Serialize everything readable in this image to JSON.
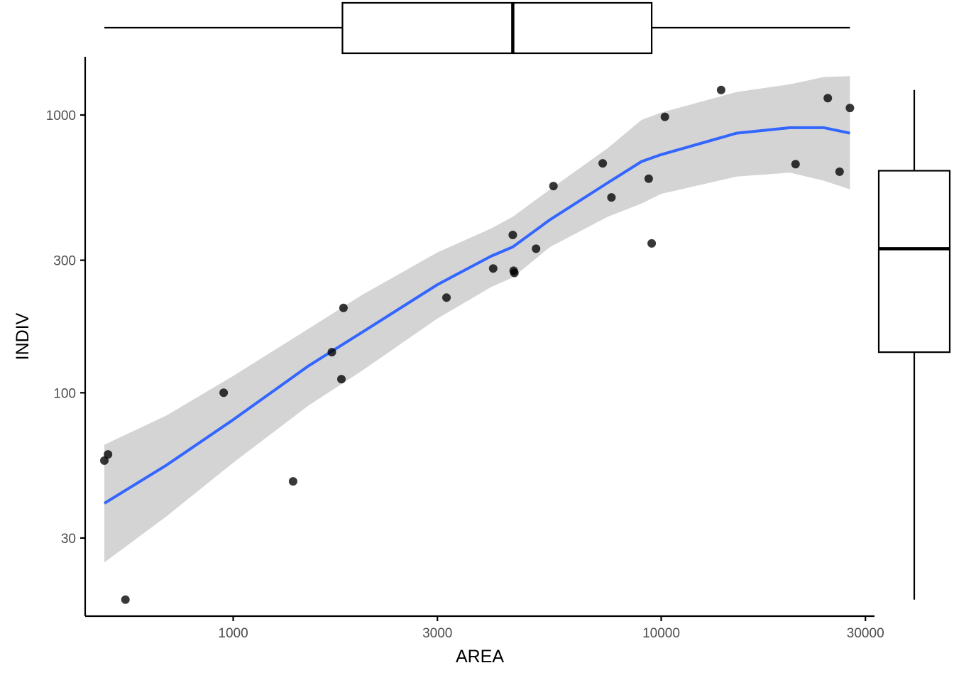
{
  "chart_data": {
    "type": "scatter",
    "title": "",
    "xlabel": "AREA",
    "ylabel": "INDIV",
    "x_scale": "log10",
    "y_scale": "log10",
    "xlim": [
      451,
      31500
    ],
    "ylim": [
      15.7,
      1620
    ],
    "x_ticks": [
      {
        "value": 1000,
        "label": "1000"
      },
      {
        "value": 3000,
        "label": "3000"
      },
      {
        "value": 10000,
        "label": "10000"
      },
      {
        "value": 30000,
        "label": "30000"
      }
    ],
    "y_ticks": [
      {
        "value": 30,
        "label": "30"
      },
      {
        "value": 100,
        "label": "100"
      },
      {
        "value": 300,
        "label": "300"
      },
      {
        "value": 1000,
        "label": "1000"
      }
    ],
    "grid": false,
    "legend": "none",
    "point_color": "#000000",
    "point_opacity": 0.78,
    "points": [
      {
        "x": 500,
        "y": 57
      },
      {
        "x": 510,
        "y": 60
      },
      {
        "x": 560,
        "y": 18
      },
      {
        "x": 950,
        "y": 100
      },
      {
        "x": 1380,
        "y": 48
      },
      {
        "x": 1700,
        "y": 140
      },
      {
        "x": 1790,
        "y": 112
      },
      {
        "x": 1810,
        "y": 202
      },
      {
        "x": 3150,
        "y": 220
      },
      {
        "x": 4050,
        "y": 280
      },
      {
        "x": 4500,
        "y": 370
      },
      {
        "x": 4520,
        "y": 275
      },
      {
        "x": 4540,
        "y": 270
      },
      {
        "x": 5100,
        "y": 330
      },
      {
        "x": 5600,
        "y": 555
      },
      {
        "x": 7300,
        "y": 670
      },
      {
        "x": 7650,
        "y": 505
      },
      {
        "x": 9350,
        "y": 590
      },
      {
        "x": 9500,
        "y": 345
      },
      {
        "x": 10200,
        "y": 985
      },
      {
        "x": 13800,
        "y": 1230
      },
      {
        "x": 20600,
        "y": 665
      },
      {
        "x": 24500,
        "y": 1150
      },
      {
        "x": 26100,
        "y": 625
      },
      {
        "x": 27600,
        "y": 1060
      }
    ],
    "smooth": {
      "color": "#3366ff",
      "band_color": "#d4d4d4",
      "x": [
        500,
        700,
        1000,
        1500,
        2000,
        3000,
        4000,
        4500,
        5500,
        7500,
        9000,
        10000,
        15000,
        20000,
        24000,
        27600
      ],
      "y": [
        40,
        55,
        80,
        125,
        165,
        245,
        310,
        335,
        420,
        570,
        680,
        720,
        860,
        900,
        900,
        860
      ],
      "lower": [
        24.5,
        36,
        56,
        90,
        120,
        185,
        240,
        260,
        335,
        430,
        480,
        520,
        600,
        620,
        580,
        540
      ],
      "upper": [
        65,
        83,
        115,
        170,
        225,
        320,
        390,
        430,
        540,
        760,
        960,
        1020,
        1210,
        1290,
        1370,
        1380
      ]
    },
    "marginal_boxplots": {
      "x": {
        "min": 500,
        "q1": 1800,
        "median": 4500,
        "q3": 9500,
        "max": 27600
      },
      "y": {
        "min": 18,
        "q1": 140,
        "median": 330,
        "q3": 630,
        "max": 1230
      }
    }
  }
}
